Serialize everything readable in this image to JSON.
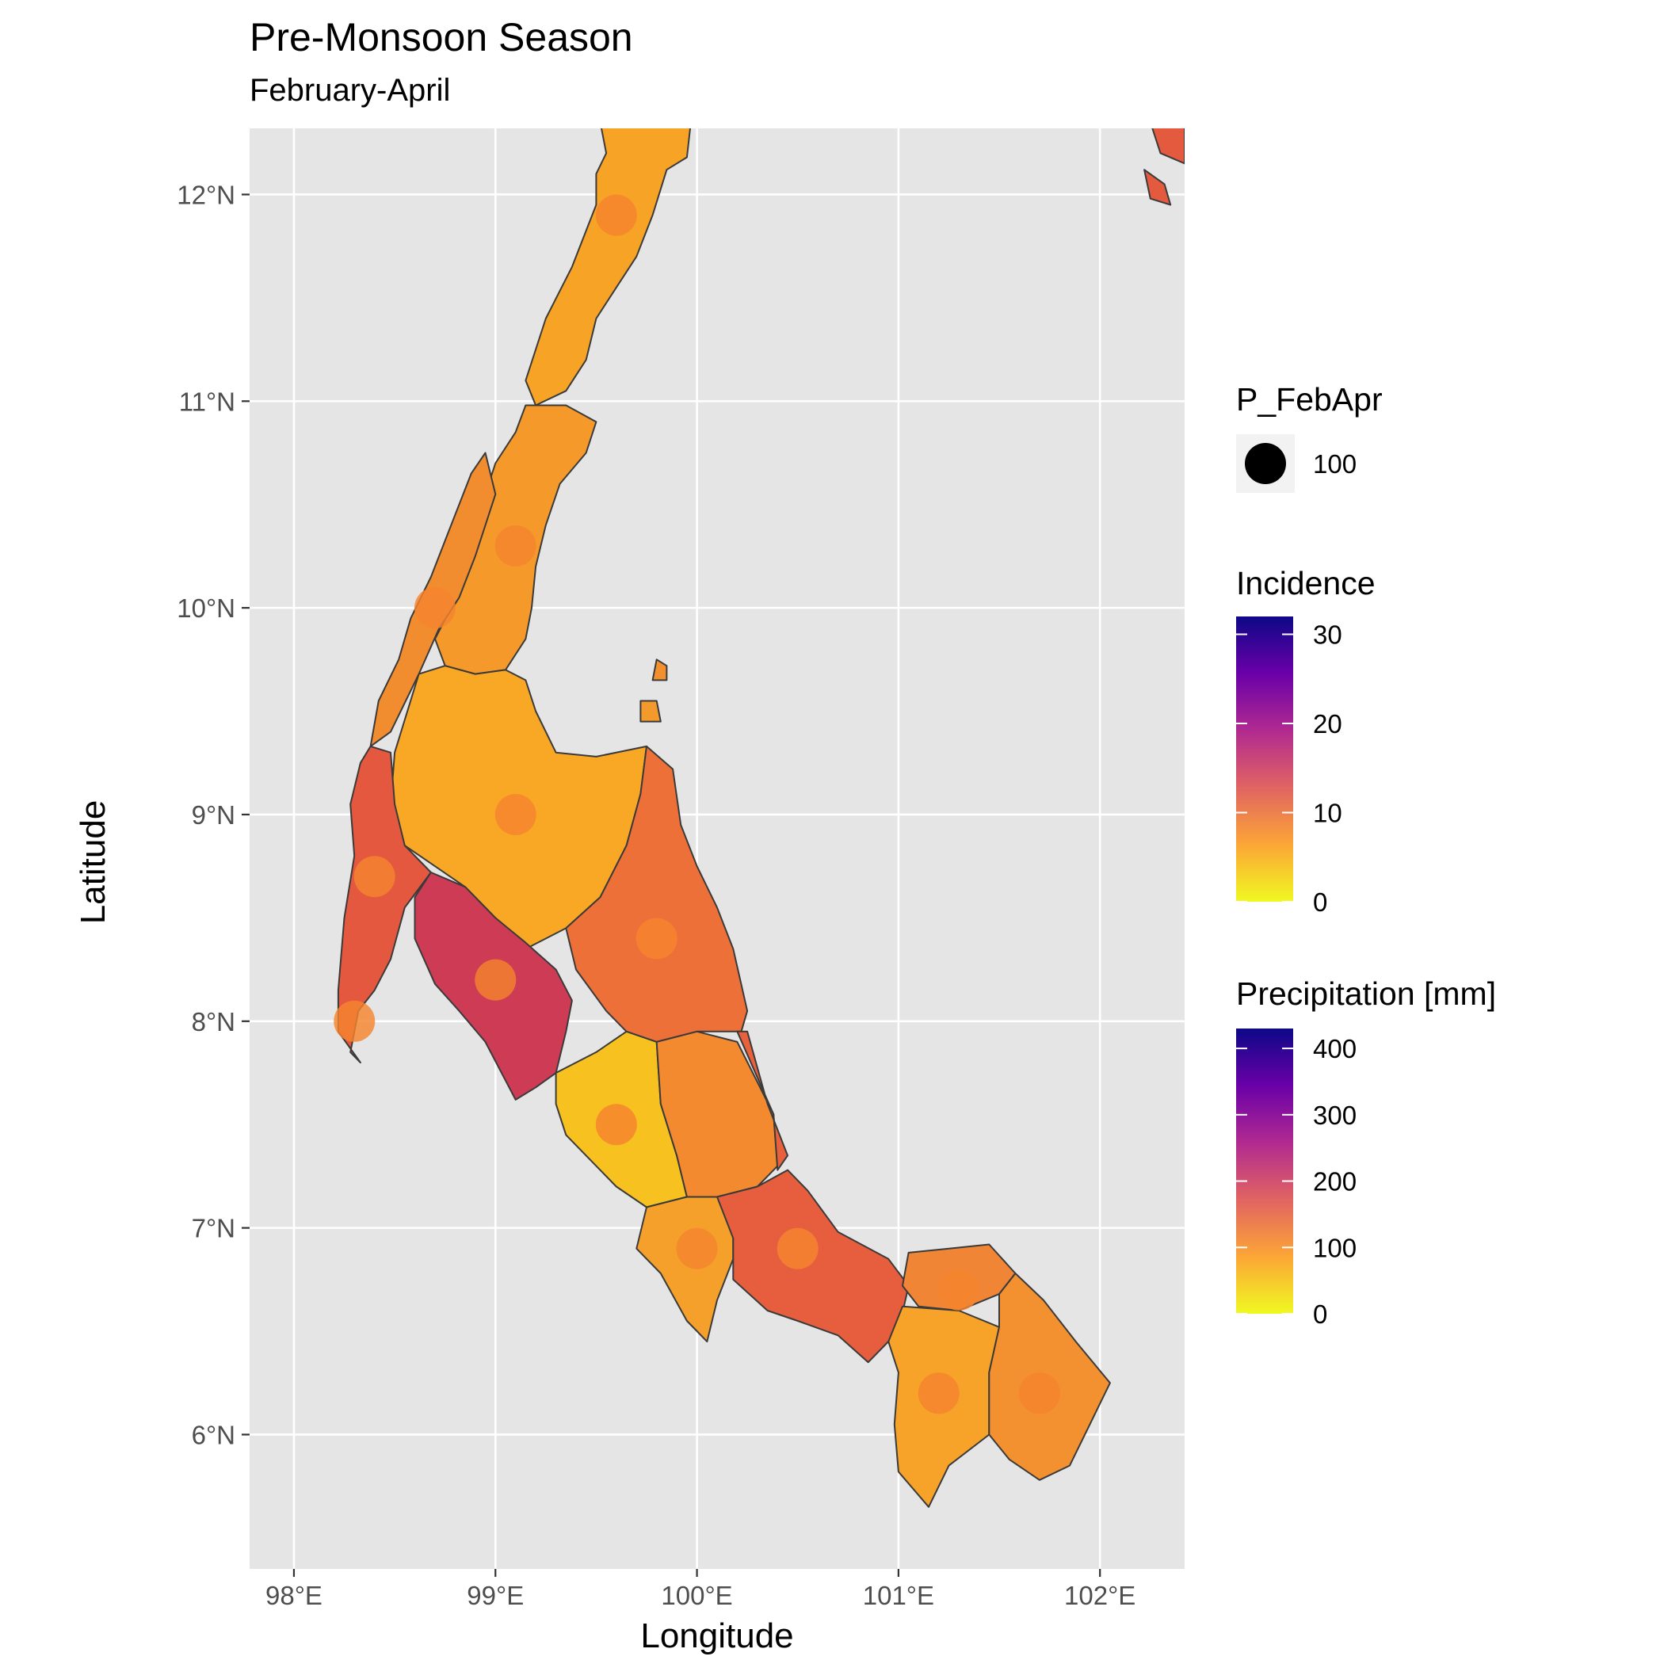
{
  "title": "Pre-Monsoon Season",
  "subtitle": "February-April",
  "chart_data": {
    "type": "map",
    "xlabel": "Longitude",
    "ylabel": "Latitude",
    "xlim": [
      97.78,
      102.42
    ],
    "ylim": [
      5.35,
      12.32
    ],
    "x_ticks": [
      {
        "value": 98,
        "label": "98°E"
      },
      {
        "value": 99,
        "label": "99°E"
      },
      {
        "value": 100,
        "label": "100°E"
      },
      {
        "value": 101,
        "label": "101°E"
      },
      {
        "value": 102,
        "label": "102°E"
      }
    ],
    "y_ticks": [
      {
        "value": 6,
        "label": "6°N"
      },
      {
        "value": 7,
        "label": "7°N"
      },
      {
        "value": 8,
        "label": "8°N"
      },
      {
        "value": 9,
        "label": "9°N"
      },
      {
        "value": 10,
        "label": "10°N"
      },
      {
        "value": 11,
        "label": "11°N"
      },
      {
        "value": 12,
        "label": "12°N"
      }
    ],
    "grid": true,
    "panel_background": "#e5e5e5",
    "regions": [
      {
        "incidence": 7,
        "color": "#f7a326",
        "outline": [
          [
            99.52,
            12.35
          ],
          [
            99.97,
            12.35
          ],
          [
            99.95,
            12.18
          ],
          [
            99.85,
            12.12
          ],
          [
            99.78,
            11.9
          ],
          [
            99.7,
            11.7
          ],
          [
            99.6,
            11.55
          ],
          [
            99.5,
            11.4
          ],
          [
            99.45,
            11.2
          ],
          [
            99.35,
            11.05
          ],
          [
            99.2,
            10.98
          ],
          [
            99.15,
            11.1
          ],
          [
            99.25,
            11.4
          ],
          [
            99.38,
            11.65
          ],
          [
            99.5,
            11.95
          ],
          [
            99.5,
            12.1
          ],
          [
            99.55,
            12.2
          ]
        ]
      },
      {
        "incidence": 8,
        "color": "#f59a2a",
        "outline": [
          [
            99.15,
            10.98
          ],
          [
            99.35,
            10.98
          ],
          [
            99.5,
            10.9
          ],
          [
            99.45,
            10.75
          ],
          [
            99.32,
            10.6
          ],
          [
            99.25,
            10.4
          ],
          [
            99.2,
            10.2
          ],
          [
            99.18,
            10.0
          ],
          [
            99.15,
            9.85
          ],
          [
            99.05,
            9.7
          ],
          [
            98.9,
            9.68
          ],
          [
            98.75,
            9.72
          ],
          [
            98.7,
            9.85
          ],
          [
            98.78,
            10.0
          ],
          [
            98.85,
            10.25
          ],
          [
            98.95,
            10.55
          ],
          [
            99.0,
            10.7
          ],
          [
            99.1,
            10.85
          ]
        ]
      },
      {
        "incidence": 9,
        "color": "#f28d2f",
        "outline": [
          [
            98.95,
            10.75
          ],
          [
            99.0,
            10.55
          ],
          [
            98.9,
            10.25
          ],
          [
            98.82,
            10.05
          ],
          [
            98.72,
            9.9
          ],
          [
            98.62,
            9.68
          ],
          [
            98.48,
            9.4
          ],
          [
            98.38,
            9.33
          ],
          [
            98.42,
            9.55
          ],
          [
            98.52,
            9.75
          ],
          [
            98.58,
            9.95
          ],
          [
            98.68,
            10.15
          ],
          [
            98.78,
            10.4
          ],
          [
            98.88,
            10.65
          ]
        ]
      },
      {
        "incidence": 7,
        "color": "#f9a825",
        "outline": [
          [
            98.62,
            9.68
          ],
          [
            98.75,
            9.72
          ],
          [
            98.9,
            9.68
          ],
          [
            99.05,
            9.7
          ],
          [
            99.15,
            9.65
          ],
          [
            99.2,
            9.5
          ],
          [
            99.3,
            9.3
          ],
          [
            99.5,
            9.28
          ],
          [
            99.75,
            9.33
          ],
          [
            99.72,
            9.1
          ],
          [
            99.65,
            8.85
          ],
          [
            99.52,
            8.6
          ],
          [
            99.35,
            8.45
          ],
          [
            99.15,
            8.35
          ],
          [
            99.0,
            8.5
          ],
          [
            98.85,
            8.65
          ],
          [
            98.7,
            8.75
          ],
          [
            98.55,
            8.85
          ],
          [
            98.48,
            9.05
          ],
          [
            98.5,
            9.3
          ]
        ]
      },
      {
        "incidence": 13,
        "color": "#e4583f",
        "outline": [
          [
            98.38,
            9.33
          ],
          [
            98.48,
            9.3
          ],
          [
            98.5,
            9.05
          ],
          [
            98.55,
            8.85
          ],
          [
            98.68,
            8.72
          ],
          [
            98.55,
            8.55
          ],
          [
            98.48,
            8.3
          ],
          [
            98.4,
            8.15
          ],
          [
            98.32,
            8.05
          ],
          [
            98.28,
            7.85
          ],
          [
            98.33,
            7.8
          ],
          [
            98.22,
            7.95
          ],
          [
            98.22,
            8.15
          ],
          [
            98.25,
            8.5
          ],
          [
            98.3,
            8.8
          ],
          [
            98.28,
            9.05
          ],
          [
            98.33,
            9.25
          ]
        ]
      },
      {
        "incidence": 17,
        "color": "#cd3b55",
        "outline": [
          [
            98.68,
            8.72
          ],
          [
            98.85,
            8.65
          ],
          [
            99.0,
            8.5
          ],
          [
            99.15,
            8.38
          ],
          [
            99.3,
            8.25
          ],
          [
            99.38,
            8.1
          ],
          [
            99.35,
            7.95
          ],
          [
            99.3,
            7.75
          ],
          [
            99.2,
            7.68
          ],
          [
            99.1,
            7.62
          ],
          [
            98.95,
            7.9
          ],
          [
            98.82,
            8.05
          ],
          [
            98.7,
            8.18
          ],
          [
            98.6,
            8.4
          ],
          [
            98.6,
            8.6
          ]
        ]
      },
      {
        "incidence": 11,
        "color": "#ee7039",
        "outline": [
          [
            99.75,
            9.33
          ],
          [
            99.88,
            9.22
          ],
          [
            99.92,
            8.95
          ],
          [
            100.0,
            8.75
          ],
          [
            100.1,
            8.55
          ],
          [
            100.18,
            8.35
          ],
          [
            100.25,
            8.05
          ],
          [
            100.22,
            7.95
          ],
          [
            100.0,
            7.95
          ],
          [
            99.8,
            7.9
          ],
          [
            99.65,
            7.95
          ],
          [
            99.55,
            8.05
          ],
          [
            99.4,
            8.25
          ],
          [
            99.35,
            8.45
          ],
          [
            99.52,
            8.6
          ],
          [
            99.65,
            8.85
          ],
          [
            99.72,
            9.1
          ]
        ]
      },
      {
        "incidence": 4,
        "color": "#f7c120",
        "outline": [
          [
            99.3,
            7.75
          ],
          [
            99.5,
            7.85
          ],
          [
            99.65,
            7.95
          ],
          [
            99.8,
            7.9
          ],
          [
            99.82,
            7.6
          ],
          [
            99.9,
            7.35
          ],
          [
            99.95,
            7.15
          ],
          [
            99.75,
            7.1
          ],
          [
            99.6,
            7.2
          ],
          [
            99.5,
            7.3
          ],
          [
            99.35,
            7.45
          ],
          [
            99.3,
            7.6
          ]
        ]
      },
      {
        "incidence": 9,
        "color": "#f38a2f",
        "outline": [
          [
            99.8,
            7.9
          ],
          [
            100.0,
            7.95
          ],
          [
            100.2,
            7.9
          ],
          [
            100.38,
            7.55
          ],
          [
            100.4,
            7.3
          ],
          [
            100.3,
            7.2
          ],
          [
            100.1,
            7.15
          ],
          [
            99.95,
            7.15
          ],
          [
            99.9,
            7.35
          ],
          [
            99.82,
            7.6
          ]
        ]
      },
      {
        "incidence": 12,
        "color": "#e8613c",
        "outline": [
          [
            100.2,
            7.95
          ],
          [
            100.25,
            7.95
          ],
          [
            100.35,
            7.6
          ],
          [
            100.45,
            7.35
          ],
          [
            100.4,
            7.28
          ],
          [
            100.38,
            7.55
          ]
        ]
      },
      {
        "incidence": 8,
        "color": "#f5a02a",
        "outline": [
          [
            99.75,
            7.1
          ],
          [
            99.95,
            7.15
          ],
          [
            100.1,
            7.15
          ],
          [
            100.18,
            7.02
          ],
          [
            100.18,
            6.85
          ],
          [
            100.1,
            6.65
          ],
          [
            100.05,
            6.45
          ],
          [
            99.95,
            6.55
          ],
          [
            99.82,
            6.78
          ],
          [
            99.7,
            6.9
          ]
        ]
      },
      {
        "incidence": 12,
        "color": "#e65e3d",
        "outline": [
          [
            100.1,
            7.15
          ],
          [
            100.3,
            7.2
          ],
          [
            100.45,
            7.28
          ],
          [
            100.55,
            7.18
          ],
          [
            100.7,
            6.98
          ],
          [
            100.95,
            6.85
          ],
          [
            101.05,
            6.72
          ],
          [
            101.0,
            6.5
          ],
          [
            100.85,
            6.35
          ],
          [
            100.7,
            6.48
          ],
          [
            100.5,
            6.55
          ],
          [
            100.35,
            6.6
          ],
          [
            100.18,
            6.75
          ],
          [
            100.18,
            6.95
          ]
        ]
      },
      {
        "incidence": 10,
        "color": "#f08535",
        "outline": [
          [
            101.05,
            6.88
          ],
          [
            101.25,
            6.9
          ],
          [
            101.45,
            6.92
          ],
          [
            101.58,
            6.78
          ],
          [
            101.5,
            6.68
          ],
          [
            101.3,
            6.6
          ],
          [
            101.1,
            6.62
          ],
          [
            101.02,
            6.72
          ]
        ]
      },
      {
        "incidence": 8,
        "color": "#f7a228",
        "outline": [
          [
            101.02,
            6.62
          ],
          [
            101.3,
            6.6
          ],
          [
            101.5,
            6.52
          ],
          [
            101.45,
            6.3
          ],
          [
            101.45,
            6.0
          ],
          [
            101.25,
            5.85
          ],
          [
            101.15,
            5.65
          ],
          [
            101.0,
            5.82
          ],
          [
            100.98,
            6.05
          ],
          [
            101.0,
            6.3
          ],
          [
            100.95,
            6.45
          ]
        ]
      },
      {
        "incidence": 9,
        "color": "#f39030",
        "outline": [
          [
            101.5,
            6.68
          ],
          [
            101.58,
            6.78
          ],
          [
            101.72,
            6.65
          ],
          [
            101.88,
            6.45
          ],
          [
            102.05,
            6.25
          ],
          [
            101.95,
            6.05
          ],
          [
            101.85,
            5.85
          ],
          [
            101.7,
            5.78
          ],
          [
            101.55,
            5.88
          ],
          [
            101.45,
            6.0
          ],
          [
            101.45,
            6.3
          ],
          [
            101.5,
            6.52
          ]
        ]
      },
      {
        "incidence": 10,
        "color": "#f29030",
        "outline": [
          [
            99.8,
            9.75
          ],
          [
            99.85,
            9.72
          ],
          [
            99.85,
            9.65
          ],
          [
            99.78,
            9.65
          ]
        ]
      },
      {
        "incidence": 9,
        "color": "#f49a2c",
        "outline": [
          [
            99.72,
            9.55
          ],
          [
            99.8,
            9.55
          ],
          [
            99.82,
            9.45
          ],
          [
            99.72,
            9.45
          ]
        ]
      },
      {
        "incidence": 13,
        "color": "#e35a3e",
        "outline": [
          [
            102.25,
            12.35
          ],
          [
            102.42,
            12.35
          ],
          [
            102.42,
            12.15
          ],
          [
            102.3,
            12.2
          ]
        ]
      },
      {
        "incidence": 13,
        "color": "#e35a3e",
        "outline": [
          [
            102.22,
            12.12
          ],
          [
            102.32,
            12.05
          ],
          [
            102.35,
            11.95
          ],
          [
            102.25,
            11.98
          ]
        ]
      }
    ],
    "points": [
      {
        "lon": 99.6,
        "lat": 11.9,
        "precipitation": 60
      },
      {
        "lon": 98.7,
        "lat": 10.0,
        "precipitation": 110
      },
      {
        "lon": 99.1,
        "lat": 10.3,
        "precipitation": 75
      },
      {
        "lon": 99.1,
        "lat": 9.0,
        "precipitation": 110
      },
      {
        "lon": 98.4,
        "lat": 8.7,
        "precipitation": 110
      },
      {
        "lon": 99.8,
        "lat": 8.4,
        "precipitation": 100
      },
      {
        "lon": 99.0,
        "lat": 8.2,
        "precipitation": 90
      },
      {
        "lon": 98.3,
        "lat": 8.0,
        "precipitation": 90
      },
      {
        "lon": 99.6,
        "lat": 7.5,
        "precipitation": 95
      },
      {
        "lon": 100.0,
        "lat": 6.9,
        "precipitation": 120
      },
      {
        "lon": 100.5,
        "lat": 6.9,
        "precipitation": 110
      },
      {
        "lon": 101.3,
        "lat": 6.7,
        "precipitation": 95
      },
      {
        "lon": 101.2,
        "lat": 6.2,
        "precipitation": 120
      },
      {
        "lon": 101.7,
        "lat": 6.2,
        "precipitation": 120
      }
    ],
    "legends": {
      "size": {
        "title": "P_FebApr",
        "label": "100"
      },
      "incidence": {
        "title": "Incidence",
        "labels": [
          "0",
          "10",
          "20",
          "30"
        ],
        "values": [
          0,
          10,
          20,
          30
        ],
        "max": 32
      },
      "precipitation": {
        "title": "Precipitation [mm]",
        "labels": [
          "0",
          "100",
          "200",
          "300",
          "400"
        ],
        "values": [
          0,
          100,
          200,
          300,
          400
        ],
        "max": 430
      }
    },
    "palette": [
      "#f0f921",
      "#fca636",
      "#e16462",
      "#b12a90",
      "#6a00a8",
      "#0d0887"
    ]
  }
}
